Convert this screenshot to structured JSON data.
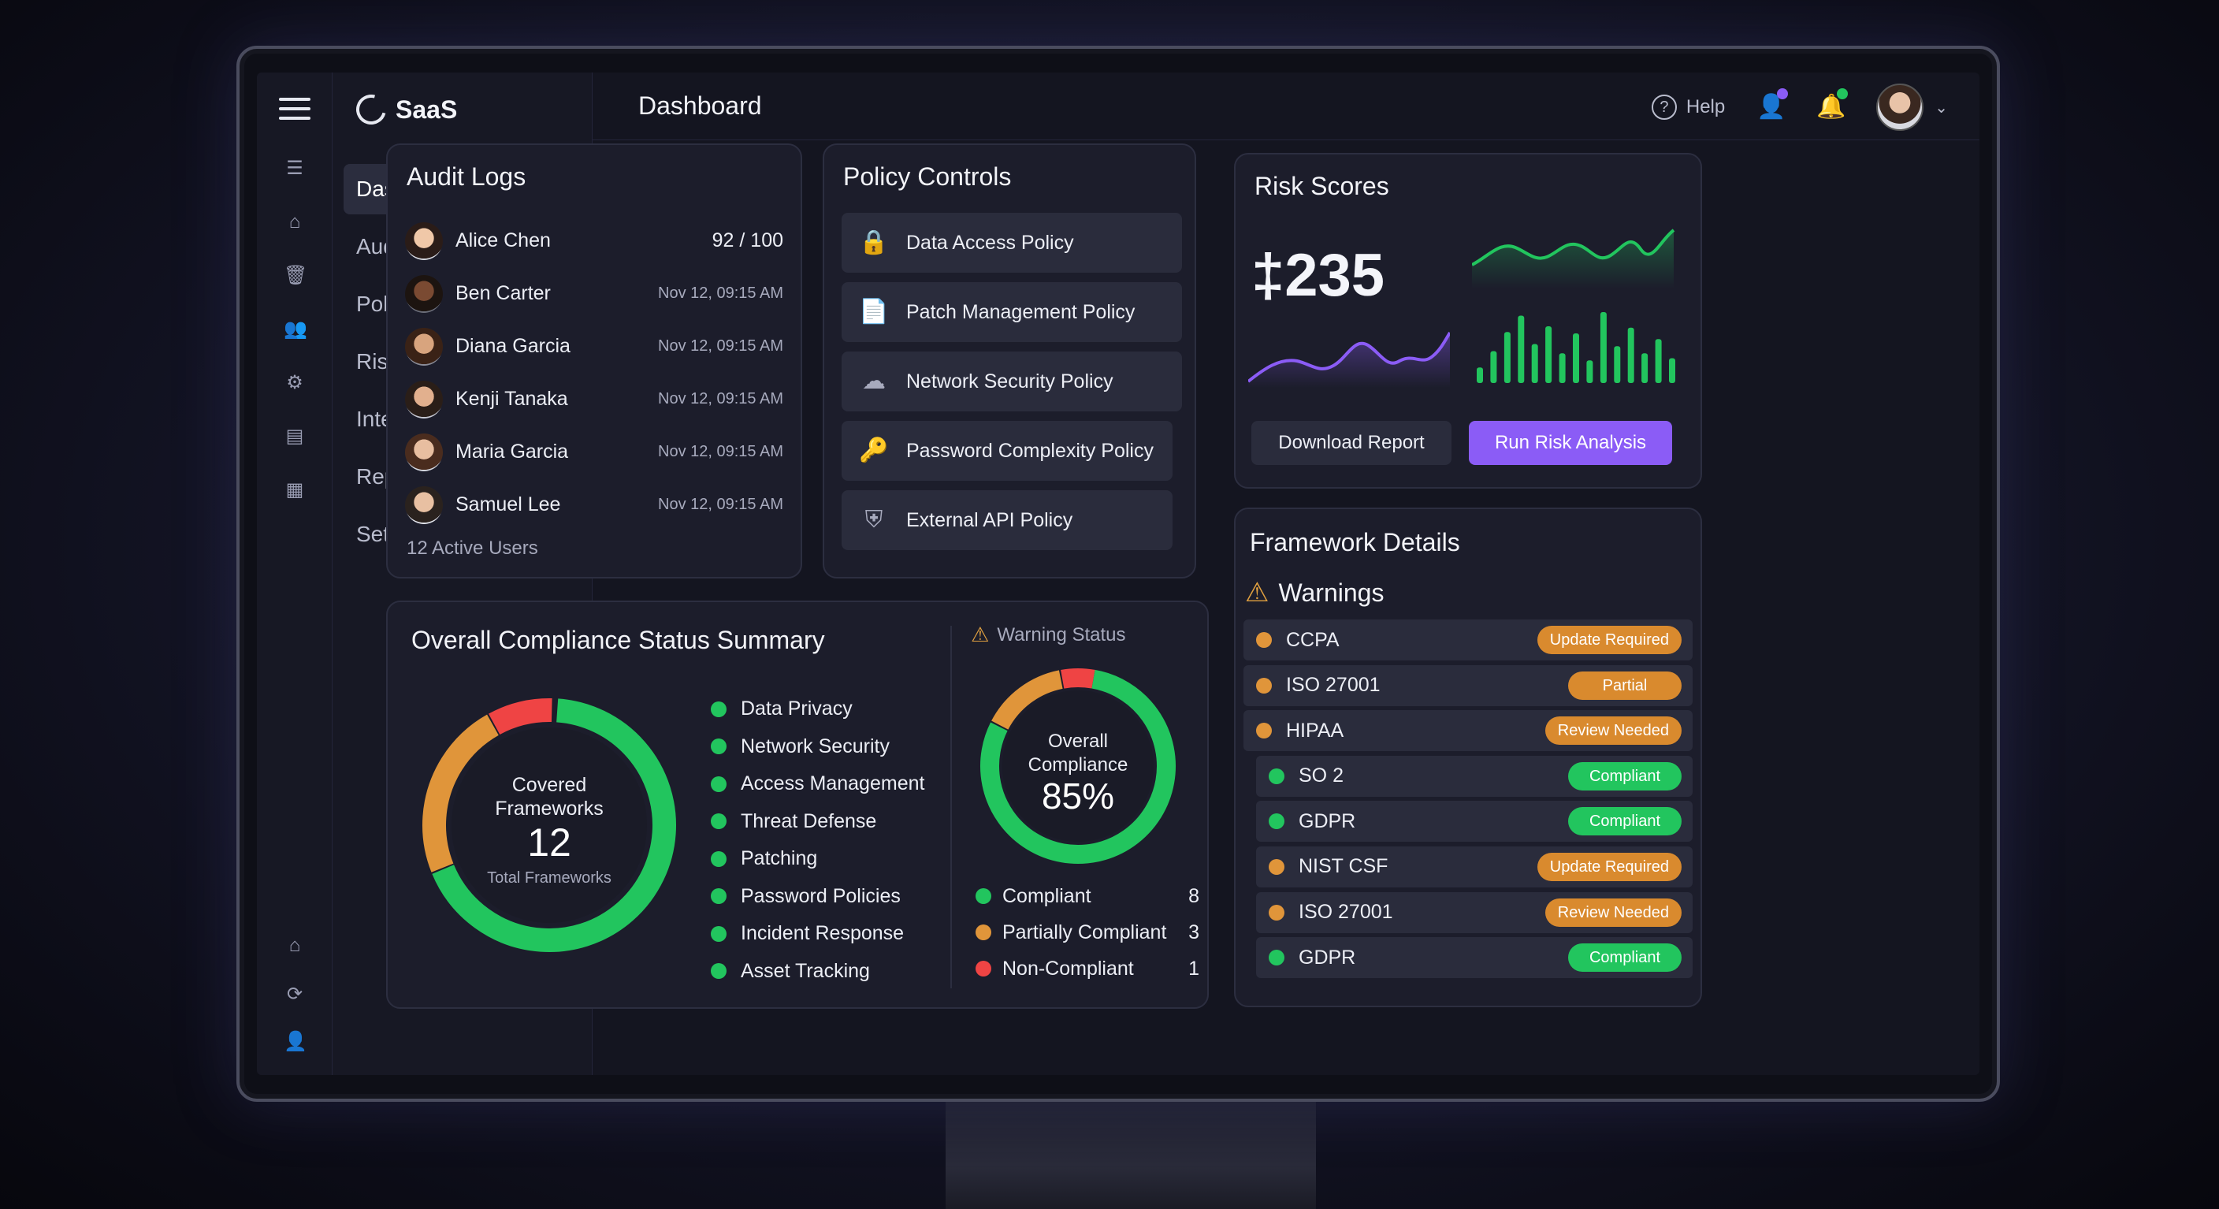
{
  "app": {
    "brand": "SaaS",
    "page_title": "Dashboard"
  },
  "sidebar": {
    "items": [
      {
        "label": "Dashboard",
        "active": true
      },
      {
        "label": "Audit Logs"
      },
      {
        "label": "Policy Management"
      },
      {
        "label": "Risk Analysis"
      },
      {
        "label": "Integrations"
      },
      {
        "label": "Reports"
      },
      {
        "label": "Settings"
      }
    ]
  },
  "rail_icons": [
    "menu-icon",
    "home-icon",
    "trash-icon",
    "users-icon",
    "settings-gear-icon",
    "report-icon",
    "grid-icon",
    "home-icon",
    "refresh-icon",
    "user-icon"
  ],
  "header": {
    "help_label": "Help"
  },
  "audit_logs": {
    "title": "Audit Logs",
    "rows": [
      {
        "name": "Alice Chen",
        "meta": "92 / 100"
      },
      {
        "name": "Ben Carter",
        "meta": "Nov 12, 09:15 AM"
      },
      {
        "name": "Diana Garcia",
        "meta": "Nov 12, 09:15 AM"
      },
      {
        "name": "Kenji Tanaka",
        "meta": "Nov 12, 09:15 AM"
      },
      {
        "name": "Maria Garcia",
        "meta": "Nov 12, 09:15 AM"
      },
      {
        "name": "Samuel Lee",
        "meta": "Nov 12, 09:15 AM"
      }
    ],
    "footer": "12 Active Users"
  },
  "policy_controls": {
    "title": "Policy Controls",
    "items": [
      {
        "label": "Data Access Policy",
        "icon": "lock-icon"
      },
      {
        "label": "Patch Management Policy",
        "icon": "document-check-icon"
      },
      {
        "label": "Network Security Policy",
        "icon": "cloud-shield-icon"
      },
      {
        "label": "Password Complexity Policy",
        "icon": "key-icon"
      },
      {
        "label": "External API Policy",
        "icon": "api-shield-icon"
      }
    ]
  },
  "risk_scores": {
    "title": "Risk Scores",
    "value": "‡235",
    "download_label": "Download Report",
    "run_label": "Run Risk Analysis",
    "bar_levels": [
      0.22,
      0.45,
      0.72,
      0.95,
      0.55,
      0.8,
      0.42,
      0.7,
      0.32,
      1.0,
      0.52,
      0.78,
      0.42,
      0.62,
      0.35
    ]
  },
  "compliance": {
    "title": "Overall Compliance Status Summary",
    "donut": {
      "line1": "Covered",
      "line2": "Frameworks",
      "count": "12",
      "sub": "Total Frameworks"
    },
    "categories": [
      "Data Privacy",
      "Network Security",
      "Access Management",
      "Threat Defense",
      "Patching",
      "Password Policies",
      "Incident Response",
      "Asset Tracking"
    ],
    "warning_status_label": "Warning Status",
    "overall": {
      "line1": "Overall",
      "line2": "Compliance",
      "percent": "85%"
    },
    "status": [
      {
        "label": "Compliant",
        "count": "8",
        "color": "#22c55e"
      },
      {
        "label": "Partially Compliant",
        "count": "3",
        "color": "#e0953a"
      },
      {
        "label": "Non-Compliant",
        "count": "1",
        "color": "#ef4444"
      }
    ]
  },
  "framework_details": {
    "title": "Framework Details",
    "warnings_label": "Warnings",
    "rows": [
      {
        "name": "CCPA",
        "status": "Update Required",
        "kind": "warn"
      },
      {
        "name": "ISO 27001",
        "status": "Partial",
        "kind": "warn"
      },
      {
        "name": "HIPAA",
        "status": "Review Needed",
        "kind": "warn"
      },
      {
        "name": "SO 2",
        "status": "Compliant",
        "kind": "ok"
      },
      {
        "name": "GDPR",
        "status": "Compliant",
        "kind": "ok"
      },
      {
        "name": "NIST CSF",
        "status": "Update Required",
        "kind": "warn"
      },
      {
        "name": "ISO 27001",
        "status": "Review Needed",
        "kind": "warn"
      },
      {
        "name": "GDPR",
        "status": "Compliant",
        "kind": "ok"
      }
    ]
  },
  "colors": {
    "accent": "#8b5cf6",
    "green": "#22c55e",
    "orange": "#e0953a",
    "red": "#ef4444"
  }
}
